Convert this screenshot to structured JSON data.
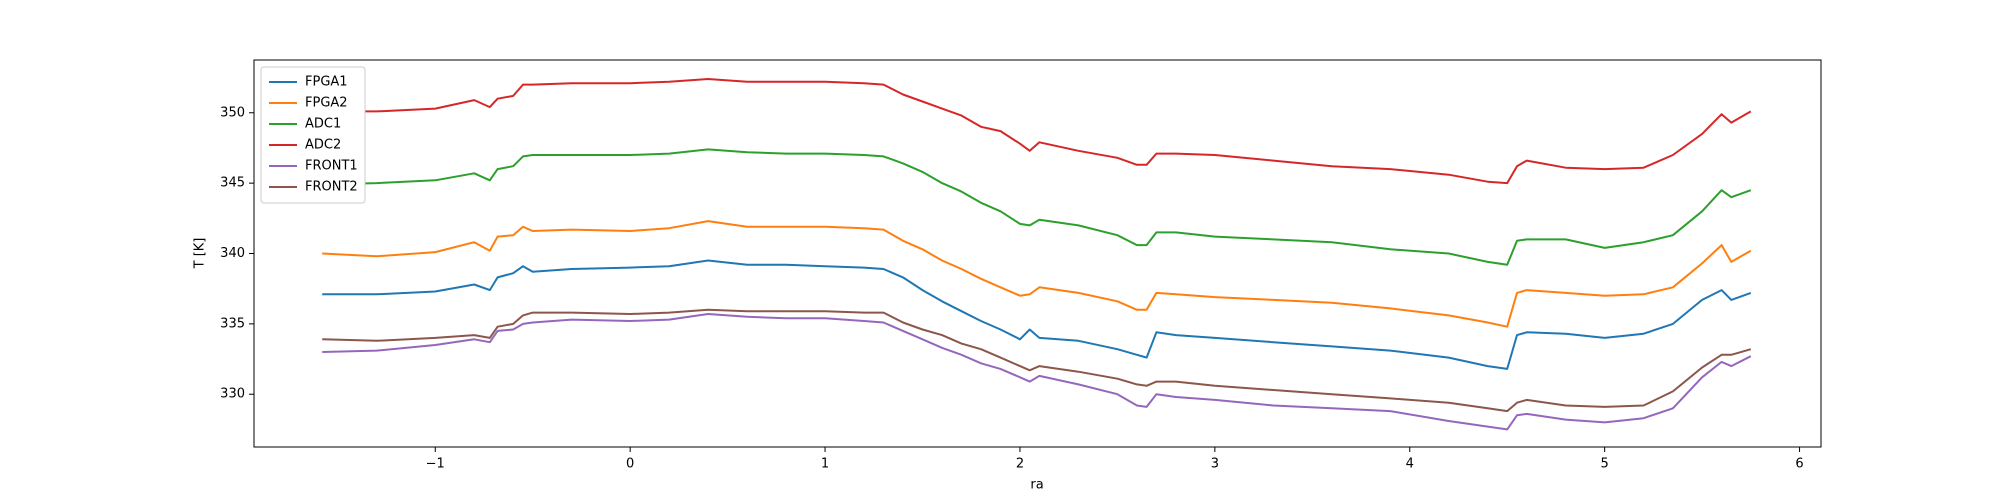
{
  "chart_data": {
    "type": "line",
    "xlabel": "ra",
    "ylabel": "T [K]",
    "x": [
      -1.58,
      -1.3,
      -1.0,
      -0.8,
      -0.72,
      -0.68,
      -0.6,
      -0.55,
      -0.5,
      -0.3,
      0,
      0.2,
      0.4,
      0.6,
      0.8,
      1.0,
      1.2,
      1.3,
      1.4,
      1.5,
      1.6,
      1.7,
      1.8,
      1.9,
      2.0,
      2.05,
      2.1,
      2.3,
      2.5,
      2.6,
      2.65,
      2.7,
      2.8,
      3.0,
      3.3,
      3.6,
      3.9,
      4.2,
      4.4,
      4.5,
      4.55,
      4.6,
      4.8,
      5.0,
      5.2,
      5.35,
      5.5,
      5.6,
      5.65,
      5.75
    ],
    "series": [
      {
        "name": "FPGA1",
        "color": "#1f77b4",
        "values": [
          337.1,
          337.1,
          337.3,
          337.8,
          337.4,
          338.3,
          338.6,
          339.1,
          338.7,
          338.9,
          339.0,
          339.1,
          339.5,
          339.2,
          339.2,
          339.1,
          339.0,
          338.9,
          338.3,
          337.4,
          336.6,
          335.9,
          335.2,
          334.6,
          333.9,
          334.6,
          334.0,
          333.8,
          333.2,
          332.8,
          332.6,
          334.4,
          334.2,
          334.0,
          333.7,
          333.4,
          333.1,
          332.6,
          332.0,
          331.8,
          334.2,
          334.4,
          334.3,
          334.0,
          334.3,
          335.0,
          336.7,
          337.4,
          336.7,
          337.2
        ]
      },
      {
        "name": "FPGA2",
        "color": "#ff7f0e",
        "values": [
          340.0,
          339.8,
          340.1,
          340.8,
          340.2,
          341.2,
          341.3,
          341.9,
          341.6,
          341.7,
          341.6,
          341.8,
          342.3,
          341.9,
          341.9,
          341.9,
          341.8,
          341.7,
          340.9,
          340.3,
          339.5,
          338.9,
          338.2,
          337.6,
          337.0,
          337.1,
          337.6,
          337.2,
          336.6,
          336.0,
          336.0,
          337.2,
          337.1,
          336.9,
          336.7,
          336.5,
          336.1,
          335.6,
          335.1,
          334.8,
          337.2,
          337.4,
          337.2,
          337.0,
          337.1,
          337.6,
          339.3,
          340.6,
          339.4,
          340.2
        ]
      },
      {
        "name": "ADC1",
        "color": "#2ca02c",
        "values": [
          344.9,
          345.0,
          345.2,
          345.7,
          345.2,
          346.0,
          346.2,
          346.9,
          347.0,
          347.0,
          347.0,
          347.1,
          347.4,
          347.2,
          347.1,
          347.1,
          347.0,
          346.9,
          346.4,
          345.8,
          345.0,
          344.4,
          343.6,
          343.0,
          342.1,
          342.0,
          342.4,
          342.0,
          341.3,
          340.6,
          340.6,
          341.5,
          341.5,
          341.2,
          341.0,
          340.8,
          340.3,
          340.0,
          339.4,
          339.2,
          340.9,
          341.0,
          341.0,
          340.4,
          340.8,
          341.3,
          343.0,
          344.5,
          344.0,
          344.5
        ]
      },
      {
        "name": "ADC2",
        "color": "#d62728",
        "values": [
          350.1,
          350.1,
          350.3,
          350.9,
          350.4,
          351.0,
          351.2,
          352.0,
          352.0,
          352.1,
          352.1,
          352.2,
          352.4,
          352.2,
          352.2,
          352.2,
          352.1,
          352.0,
          351.3,
          350.8,
          350.3,
          349.8,
          349.0,
          348.7,
          347.8,
          347.3,
          347.9,
          347.3,
          346.8,
          346.3,
          346.3,
          347.1,
          347.1,
          347.0,
          346.6,
          346.2,
          346.0,
          345.6,
          345.1,
          345.0,
          346.2,
          346.6,
          346.1,
          346.0,
          346.1,
          347.0,
          348.5,
          349.9,
          349.3,
          350.1
        ]
      },
      {
        "name": "FRONT1",
        "color": "#9467bd",
        "values": [
          333.0,
          333.1,
          333.5,
          333.9,
          333.7,
          334.5,
          334.6,
          335.0,
          335.1,
          335.3,
          335.2,
          335.3,
          335.7,
          335.5,
          335.4,
          335.4,
          335.2,
          335.1,
          334.5,
          333.9,
          333.3,
          332.8,
          332.2,
          331.8,
          331.2,
          330.9,
          331.3,
          330.7,
          330.0,
          329.2,
          329.1,
          330.0,
          329.8,
          329.6,
          329.2,
          329.0,
          328.8,
          328.1,
          327.7,
          327.5,
          328.5,
          328.6,
          328.2,
          328.0,
          328.3,
          329.0,
          331.2,
          332.3,
          332.0,
          332.7
        ]
      },
      {
        "name": "FRONT2",
        "color": "#8c564b",
        "values": [
          333.9,
          333.8,
          334.0,
          334.2,
          334.0,
          334.8,
          335.0,
          335.6,
          335.8,
          335.8,
          335.7,
          335.8,
          336.0,
          335.9,
          335.9,
          335.9,
          335.8,
          335.8,
          335.1,
          334.6,
          334.2,
          333.6,
          333.2,
          332.6,
          332.0,
          331.7,
          332.0,
          331.6,
          331.1,
          330.7,
          330.6,
          330.9,
          330.9,
          330.6,
          330.3,
          330.0,
          329.7,
          329.4,
          329.0,
          328.8,
          329.4,
          329.6,
          329.2,
          329.1,
          329.2,
          330.2,
          331.9,
          332.8,
          332.8,
          333.2
        ]
      }
    ],
    "xlim": [
      -1.93,
      6.11
    ],
    "ylim": [
      326.25,
      353.75
    ],
    "xticks": [
      {
        "value": -1,
        "label": "−1"
      },
      0,
      1,
      2,
      3,
      4,
      5,
      6
    ],
    "yticks": [
      330,
      335,
      340,
      345,
      350
    ],
    "legend": "upper left"
  }
}
